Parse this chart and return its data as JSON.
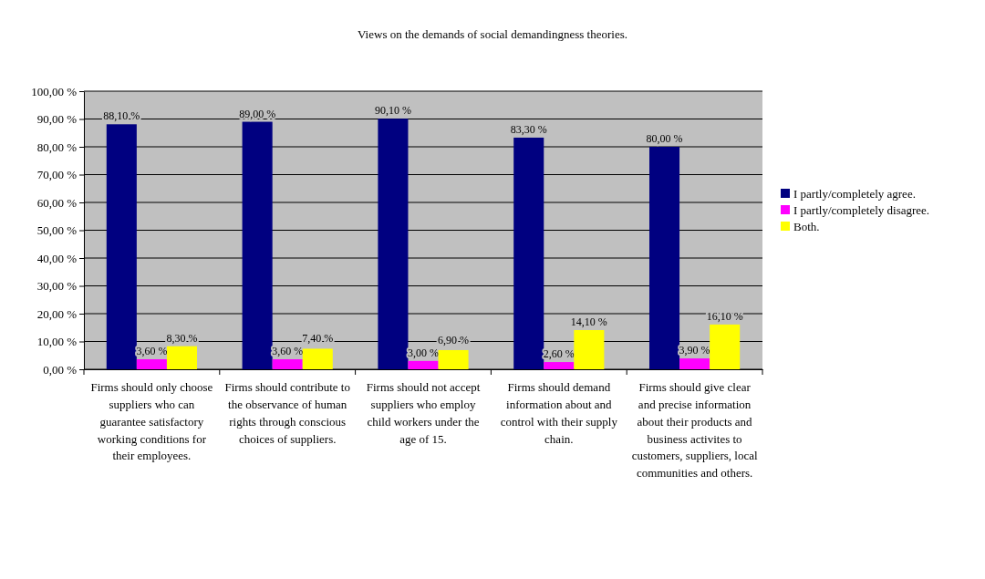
{
  "chart_data": {
    "type": "bar",
    "title": "Views on the demands of social demandingness theories.",
    "categories": [
      "Firms should only choose suppliers who can guarantee satisfactory working conditions for their employees.",
      "Firms should contribute to the observance of human rights through conscious choices of suppliers.",
      "Firms should not accept suppliers who employ child workers under the age of 15.",
      "Firms should demand information about and control with their supply chain.",
      "Firms should give clear and precise information about their products and business activites to customers, suppliers, local communities and others."
    ],
    "series": [
      {
        "name": "I partly/completely agree.",
        "color": "#000080",
        "values": [
          88.1,
          89.0,
          90.1,
          83.3,
          80.0
        ],
        "value_labels": [
          "88,10 %",
          "89,00 %",
          "90,10 %",
          "83,30 %",
          "80,00 %"
        ]
      },
      {
        "name": "I partly/completely disagree.",
        "color": "#ff00ff",
        "values": [
          3.6,
          3.6,
          3.0,
          2.6,
          3.9
        ],
        "value_labels": [
          "3,60 %",
          "3,60 %",
          "3,00 %",
          "2,60 %",
          "3,90 %"
        ]
      },
      {
        "name": "Both.",
        "color": "#ffff00",
        "values": [
          8.3,
          7.4,
          6.9,
          14.1,
          16.1
        ],
        "value_labels": [
          "8,30 %",
          "7,40 %",
          "6,90 %",
          "14,10 %",
          "16,10 %"
        ]
      }
    ],
    "ylim": [
      0,
      100
    ],
    "yticks": [
      {
        "value": 0,
        "label": "0,00 %"
      },
      {
        "value": 10,
        "label": "10,00 %"
      },
      {
        "value": 20,
        "label": "20,00 %"
      },
      {
        "value": 30,
        "label": "30,00 %"
      },
      {
        "value": 40,
        "label": "40,00 %"
      },
      {
        "value": 50,
        "label": "50,00 %"
      },
      {
        "value": 60,
        "label": "60,00 %"
      },
      {
        "value": 70,
        "label": "70,00 %"
      },
      {
        "value": 80,
        "label": "80,00 %"
      },
      {
        "value": 90,
        "label": "90,00 %"
      },
      {
        "value": 100,
        "label": "100,00 %"
      }
    ],
    "grid": "y",
    "legend": "right"
  }
}
